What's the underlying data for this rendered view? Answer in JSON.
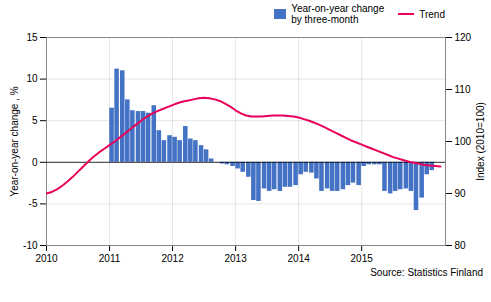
{
  "chart_data": {
    "type": "bar",
    "xlim": [
      2010.0,
      2016.33
    ],
    "xticks": [
      2010,
      2011,
      2012,
      2013,
      2014,
      2015
    ],
    "ylim": [
      -10,
      15
    ],
    "yticks": [
      -10,
      -5,
      0,
      5,
      10,
      15
    ],
    "y_label": "Year-on-year change , %",
    "y2lim": [
      80,
      120
    ],
    "y2ticks": [
      80,
      90,
      100,
      110,
      120
    ],
    "y2_label": "Index (2010=100)",
    "grid": true,
    "legend": "upper right",
    "annotations": [
      "Source: Statistics Finland"
    ],
    "series": [
      {
        "name": "Year-on-year change\nby three-month",
        "type": "bar",
        "color": "#4472C4",
        "x": [
          2010.04,
          2010.12,
          2010.21,
          2010.29,
          2010.37,
          2010.46,
          2010.54,
          2010.62,
          2010.71,
          2010.79,
          2010.87,
          2010.96,
          2011.04,
          2011.12,
          2011.21,
          2011.29,
          2011.37,
          2011.46,
          2011.54,
          2011.62,
          2011.71,
          2011.79,
          2011.87,
          2011.96,
          2012.04,
          2012.12,
          2012.21,
          2012.29,
          2012.37,
          2012.46,
          2012.54,
          2012.62,
          2012.71,
          2012.79,
          2012.87,
          2012.96,
          2013.04,
          2013.12,
          2013.21,
          2013.29,
          2013.37,
          2013.46,
          2013.54,
          2013.62,
          2013.71,
          2013.79,
          2013.87,
          2013.96,
          2014.04,
          2014.12,
          2014.21,
          2014.29,
          2014.37,
          2014.46,
          2014.54,
          2014.62,
          2014.71,
          2014.79,
          2014.87,
          2014.96,
          2015.04,
          2015.12,
          2015.21,
          2015.29,
          2015.37,
          2015.46,
          2015.54,
          2015.62,
          2015.71,
          2015.79,
          2015.87,
          2015.96,
          2016.04,
          2016.12
        ],
        "values": [
          0.0,
          0.0,
          0.0,
          0.0,
          0.0,
          0.0,
          0.0,
          0.0,
          0.0,
          0.0,
          0.0,
          0.0,
          6.5,
          11.2,
          11.0,
          7.5,
          6.2,
          6.1,
          6.1,
          5.9,
          6.8,
          3.8,
          2.6,
          3.2,
          3.0,
          2.6,
          4.3,
          2.8,
          2.6,
          2.0,
          1.5,
          0.4,
          0.0,
          -0.2,
          -0.3,
          -0.5,
          -0.8,
          -1.2,
          -1.8,
          -4.6,
          -4.7,
          -3.2,
          -3.5,
          -3.3,
          -3.5,
          -3.0,
          -3.0,
          -2.8,
          -1.5,
          -1.2,
          -1.3,
          -2.0,
          -3.5,
          -3.2,
          -3.5,
          -3.5,
          -3.3,
          -2.8,
          -2.5,
          -2.8,
          -0.5,
          -0.3,
          -0.3,
          -0.3,
          -3.5,
          -3.8,
          -3.5,
          -3.3,
          -3.2,
          -3.5,
          -5.8,
          -4.3,
          -1.5,
          -1.0
        ]
      },
      {
        "name": "Trend",
        "type": "line",
        "color": "#E8005A",
        "axis": "y2",
        "x": [
          2010.0,
          2010.083,
          2010.167,
          2010.25,
          2010.333,
          2010.417,
          2010.5,
          2010.583,
          2010.667,
          2010.75,
          2010.833,
          2010.917,
          2011.0,
          2011.083,
          2011.167,
          2011.25,
          2011.333,
          2011.417,
          2011.5,
          2011.583,
          2011.667,
          2011.75,
          2011.833,
          2011.917,
          2012.0,
          2012.083,
          2012.167,
          2012.25,
          2012.333,
          2012.417,
          2012.5,
          2012.583,
          2012.667,
          2012.75,
          2012.833,
          2012.917,
          2013.0,
          2013.083,
          2013.167,
          2013.25,
          2013.333,
          2013.417,
          2013.5,
          2013.583,
          2013.667,
          2013.75,
          2013.833,
          2013.917,
          2014.0,
          2014.083,
          2014.167,
          2014.25,
          2014.333,
          2014.417,
          2014.5,
          2014.583,
          2014.667,
          2014.75,
          2014.833,
          2014.917,
          2015.0,
          2015.083,
          2015.167,
          2015.25,
          2015.333,
          2015.417,
          2015.5,
          2015.583,
          2015.667,
          2015.75,
          2015.833,
          2015.917,
          2016.0,
          2016.083,
          2016.167,
          2016.25
        ],
        "values": [
          90.0,
          90.3,
          90.8,
          91.5,
          92.3,
          93.2,
          94.2,
          95.2,
          96.2,
          97.1,
          97.9,
          98.6,
          99.3,
          100.0,
          100.8,
          101.6,
          102.4,
          103.2,
          104.0,
          104.7,
          105.3,
          105.8,
          106.2,
          106.6,
          107.0,
          107.4,
          107.7,
          107.9,
          108.1,
          108.3,
          108.4,
          108.3,
          108.1,
          107.8,
          107.3,
          106.7,
          106.0,
          105.4,
          105.0,
          104.8,
          104.8,
          104.8,
          104.9,
          105.0,
          105.0,
          105.0,
          104.9,
          104.8,
          104.6,
          104.3,
          104.0,
          103.6,
          103.2,
          102.7,
          102.2,
          101.7,
          101.2,
          100.7,
          100.2,
          99.8,
          99.4,
          99.0,
          98.6,
          98.2,
          97.8,
          97.4,
          97.0,
          96.7,
          96.4,
          96.1,
          95.9,
          95.7,
          95.5,
          95.4,
          95.3,
          95.2
        ]
      }
    ]
  }
}
